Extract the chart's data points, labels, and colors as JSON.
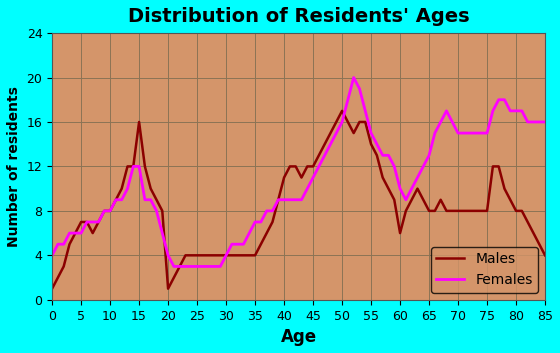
{
  "title": "Distribution of Residents' Ages",
  "xlabel": "Age",
  "ylabel": "Number of residents",
  "background_outer": "#00FFFF",
  "background_inner": "#D4956A",
  "grid_color": "#8B7355",
  "ylim": [
    0,
    24
  ],
  "xlim": [
    0,
    85
  ],
  "yticks": [
    0,
    4,
    8,
    12,
    16,
    20,
    24
  ],
  "xticks": [
    0,
    5,
    10,
    15,
    20,
    25,
    30,
    35,
    40,
    45,
    50,
    55,
    60,
    65,
    70,
    75,
    80,
    85
  ],
  "males_color": "#8B0000",
  "females_color": "#FF00FF",
  "males_ages": [
    0,
    1,
    2,
    3,
    4,
    5,
    6,
    7,
    8,
    9,
    10,
    11,
    12,
    13,
    14,
    15,
    16,
    17,
    18,
    19,
    20,
    21,
    22,
    23,
    24,
    25,
    26,
    27,
    28,
    29,
    30,
    31,
    32,
    33,
    34,
    35,
    36,
    37,
    38,
    39,
    40,
    41,
    42,
    43,
    44,
    45,
    46,
    47,
    48,
    49,
    50,
    51,
    52,
    53,
    54,
    55,
    56,
    57,
    58,
    59,
    60,
    61,
    62,
    63,
    64,
    65,
    66,
    67,
    68,
    69,
    70,
    71,
    72,
    73,
    74,
    75,
    76,
    77,
    78,
    79,
    80,
    81,
    82,
    83,
    84,
    85
  ],
  "males_values": [
    1,
    2,
    3,
    5,
    6,
    7,
    7,
    6,
    7,
    8,
    8,
    9,
    10,
    12,
    12,
    16,
    12,
    10,
    9,
    8,
    1,
    2,
    3,
    4,
    4,
    4,
    4,
    4,
    4,
    4,
    4,
    4,
    4,
    4,
    4,
    4,
    5,
    6,
    7,
    9,
    11,
    12,
    12,
    11,
    12,
    12,
    13,
    14,
    15,
    16,
    17,
    16,
    15,
    16,
    16,
    14,
    13,
    11,
    10,
    9,
    6,
    8,
    9,
    10,
    9,
    8,
    8,
    9,
    8,
    8,
    8,
    8,
    8,
    8,
    8,
    8,
    12,
    12,
    10,
    9,
    8,
    8,
    7,
    6,
    5,
    4
  ],
  "females_ages": [
    0,
    1,
    2,
    3,
    4,
    5,
    6,
    7,
    8,
    9,
    10,
    11,
    12,
    13,
    14,
    15,
    16,
    17,
    18,
    19,
    20,
    21,
    22,
    23,
    24,
    25,
    26,
    27,
    28,
    29,
    30,
    31,
    32,
    33,
    34,
    35,
    36,
    37,
    38,
    39,
    40,
    41,
    42,
    43,
    44,
    45,
    46,
    47,
    48,
    49,
    50,
    51,
    52,
    53,
    54,
    55,
    56,
    57,
    58,
    59,
    60,
    61,
    62,
    63,
    64,
    65,
    66,
    67,
    68,
    69,
    70,
    71,
    72,
    73,
    74,
    75,
    76,
    77,
    78,
    79,
    80,
    81,
    82,
    83,
    84,
    85
  ],
  "females_values": [
    4,
    5,
    5,
    6,
    6,
    6,
    7,
    7,
    7,
    8,
    8,
    9,
    9,
    10,
    12,
    12,
    9,
    9,
    8,
    6,
    4,
    3,
    3,
    3,
    3,
    3,
    3,
    3,
    3,
    3,
    4,
    5,
    5,
    5,
    6,
    7,
    7,
    8,
    8,
    9,
    9,
    9,
    9,
    9,
    10,
    11,
    12,
    13,
    14,
    15,
    16,
    18,
    20,
    19,
    17,
    15,
    14,
    13,
    13,
    12,
    10,
    9,
    10,
    11,
    12,
    13,
    15,
    16,
    17,
    16,
    15,
    15,
    15,
    15,
    15,
    15,
    17,
    18,
    18,
    17,
    17,
    17,
    16,
    16,
    16,
    16
  ]
}
